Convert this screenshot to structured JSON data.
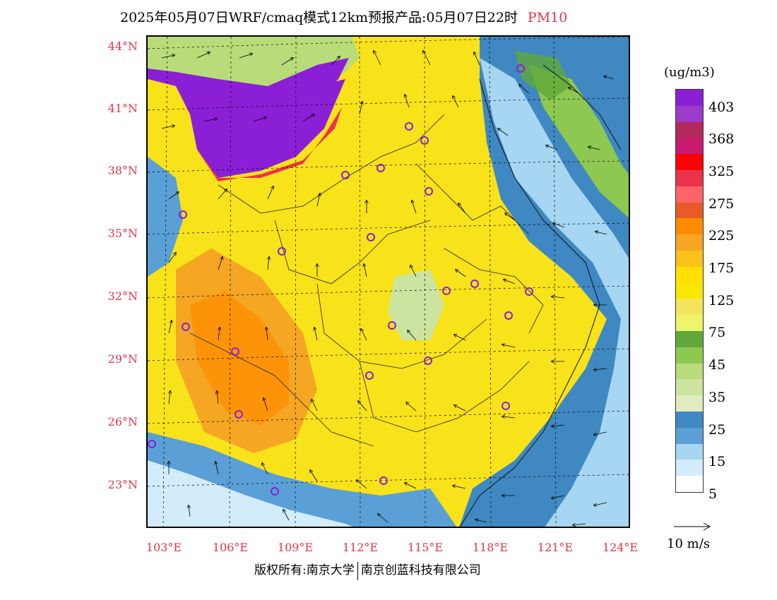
{
  "title": {
    "main": "2025年05月07日WRF/cmaq模式12km预报产品:05月07日22时",
    "pollutant": "PM10"
  },
  "latitude_labels": [
    "44°N",
    "41°N",
    "38°N",
    "35°N",
    "32°N",
    "29°N",
    "26°N",
    "23°N"
  ],
  "longitude_labels": [
    "103°E",
    "106°E",
    "109°E",
    "112°E",
    "115°E",
    "118°E",
    "121°E",
    "124°E"
  ],
  "legend": {
    "unit": "(ug/m3)",
    "labels": [
      "403",
      "368",
      "325",
      "275",
      "225",
      "175",
      "125",
      "75",
      "45",
      "35",
      "25",
      "15",
      "5"
    ],
    "colors": [
      "#8b1fd6",
      "#9b3cc9",
      "#b22a5c",
      "#c81a6e",
      "#ff0000",
      "#e8334a",
      "#ff6468",
      "#e85a28",
      "#ff8c00",
      "#f5a623",
      "#f8c21a",
      "#ffe000",
      "#f8e800",
      "#f2e55c",
      "#eef56a",
      "#60a83a",
      "#8dc850",
      "#b8dc7a",
      "#cce4a0",
      "#e0ecc0",
      "#3f88c2",
      "#5aa0d6",
      "#a6d6f2",
      "#d2ecfa",
      "#ffffff"
    ]
  },
  "wind_scale": "10 m/s",
  "copyright": {
    "left": "版权所有:南京大学",
    "right": "南京创蓝科技有限公司"
  }
}
